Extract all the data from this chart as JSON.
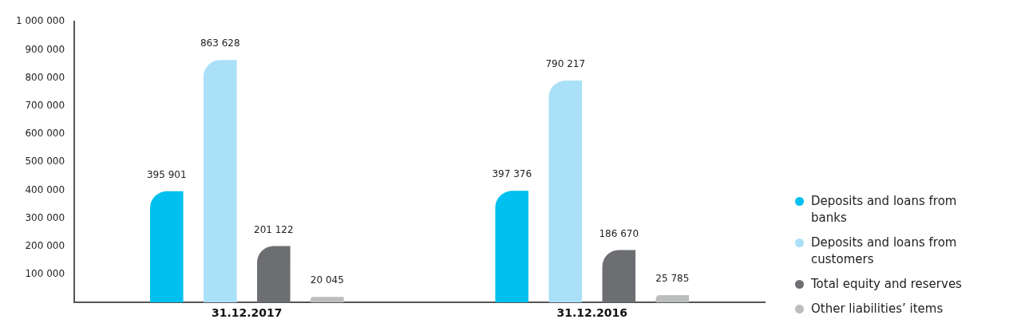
{
  "chart_data": {
    "type": "bar",
    "categories": [
      "31.12.2017",
      "31.12.2016"
    ],
    "series": [
      {
        "name": "Deposits and loans from banks",
        "color": "#00c0f0",
        "values": [
          395901,
          397376
        ]
      },
      {
        "name": "Deposits and loans from customers",
        "color": "#aae0f8",
        "values": [
          863628,
          790217
        ]
      },
      {
        "name": "Total equity and reserves",
        "color": "#6d6e71",
        "values": [
          201122,
          186670
        ]
      },
      {
        "name": "Other liabilities’ items",
        "color": "#bcbdbf",
        "values": [
          20045,
          25785
        ]
      }
    ],
    "ylim": [
      0,
      1000000
    ],
    "yticks": [
      {
        "value": 100000,
        "label": "100 000"
      },
      {
        "value": 200000,
        "label": "200 000"
      },
      {
        "value": 300000,
        "label": "300 000"
      },
      {
        "value": 400000,
        "label": "400 000"
      },
      {
        "value": 500000,
        "label": "500 000"
      },
      {
        "value": 600000,
        "label": "600 000"
      },
      {
        "value": 700000,
        "label": "700 000"
      },
      {
        "value": 800000,
        "label": "800 000"
      },
      {
        "value": 900000,
        "label": "900 000"
      },
      {
        "value": 1000000,
        "label": "1 000 000"
      }
    ],
    "value_labels": [
      [
        "395 901",
        "397 376"
      ],
      [
        "863 628",
        "790 217"
      ],
      [
        "201 122",
        "186 670"
      ],
      [
        "20 045",
        "25 785"
      ]
    ],
    "grid": false,
    "legend": "right"
  }
}
